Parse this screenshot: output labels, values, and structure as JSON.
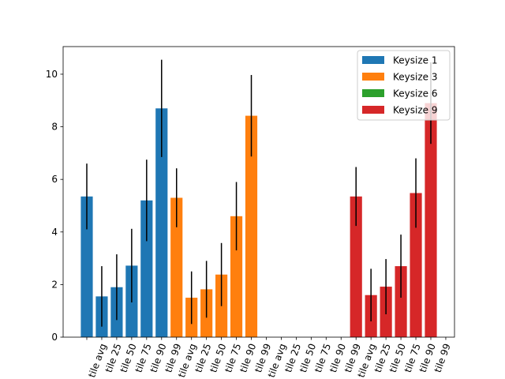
{
  "chart_data": {
    "type": "bar",
    "categories": [
      null,
      "tile avg",
      "tile 25",
      "tile 50",
      "tile 75",
      "tile 90",
      "tile 99",
      "tile avg",
      "tile 25",
      "tile 50",
      "tile 75",
      "tile 90",
      "tile 99",
      "tile avg",
      "tile 25",
      "tile 50",
      "tile 75",
      "tile 90",
      "tile 99",
      "tile avg",
      "tile 25",
      "tile 50",
      "tile 75",
      "tile 90",
      "tile 99"
    ],
    "series": [
      {
        "name": "Keysize 1",
        "color": "#1f77b4",
        "values": [
          5.35,
          1.55,
          1.9,
          2.72,
          5.2,
          8.7,
          null,
          null,
          null,
          null,
          null,
          null,
          null,
          null,
          null,
          null,
          null,
          null,
          null,
          null,
          null,
          null,
          null,
          null,
          null
        ],
        "errors": [
          1.25,
          1.15,
          1.25,
          1.4,
          1.55,
          1.85,
          null,
          null,
          null,
          null,
          null,
          null,
          null,
          null,
          null,
          null,
          null,
          null,
          null,
          null,
          null,
          null,
          null,
          null,
          null
        ]
      },
      {
        "name": "Keysize 3",
        "color": "#ff7f0e",
        "values": [
          null,
          null,
          null,
          null,
          null,
          null,
          5.3,
          1.5,
          1.82,
          2.38,
          4.6,
          8.42,
          null,
          null,
          null,
          null,
          null,
          null,
          null,
          null,
          null,
          null,
          null,
          null,
          null
        ],
        "errors": [
          null,
          null,
          null,
          null,
          null,
          null,
          1.12,
          1.0,
          1.08,
          1.2,
          1.3,
          1.55,
          null,
          null,
          null,
          null,
          null,
          null,
          null,
          null,
          null,
          null,
          null,
          null,
          null
        ]
      },
      {
        "name": "Keysize 6",
        "color": "#2ca02c",
        "values": [
          null,
          null,
          null,
          null,
          null,
          null,
          null,
          null,
          null,
          null,
          null,
          null,
          null,
          null,
          null,
          null,
          null,
          null,
          null,
          null,
          null,
          null,
          null,
          null,
          null
        ],
        "errors": [
          null,
          null,
          null,
          null,
          null,
          null,
          null,
          null,
          null,
          null,
          null,
          null,
          null,
          null,
          null,
          null,
          null,
          null,
          null,
          null,
          null,
          null,
          null,
          null,
          null
        ]
      },
      {
        "name": "Keysize 9",
        "color": "#d62728",
        "values": [
          null,
          null,
          null,
          null,
          null,
          null,
          null,
          null,
          null,
          null,
          null,
          null,
          null,
          null,
          null,
          null,
          null,
          null,
          5.35,
          1.6,
          1.92,
          2.7,
          5.48,
          8.9,
          null
        ],
        "errors": [
          null,
          null,
          null,
          null,
          null,
          null,
          null,
          null,
          null,
          null,
          null,
          null,
          null,
          null,
          null,
          null,
          null,
          null,
          1.12,
          1.0,
          1.05,
          1.2,
          1.32,
          1.55,
          null
        ]
      }
    ],
    "ylim": [
      0,
      11.05
    ],
    "yticks": [
      0,
      2,
      4,
      6,
      8,
      10
    ],
    "legend": "upper right"
  }
}
